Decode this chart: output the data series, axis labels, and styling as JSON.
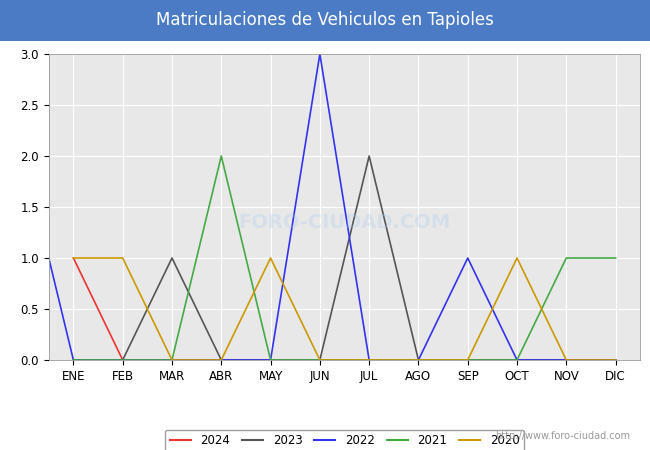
{
  "title": "Matriculaciones de Vehiculos en Tapioles",
  "title_bg_color": "#4a7bc4",
  "title_text_color": "#FFFFFF",
  "plot_bg_color": "#E8E8E8",
  "months": [
    "ENE",
    "FEB",
    "MAR",
    "ABR",
    "MAY",
    "JUN",
    "JUL",
    "AGO",
    "SEP",
    "OCT",
    "NOV",
    "DIC"
  ],
  "ylim": [
    0.0,
    3.0
  ],
  "yticks": [
    0.0,
    0.5,
    1.0,
    1.5,
    2.0,
    2.5,
    3.0
  ],
  "watermark": "http://www.foro-ciudad.com",
  "series": {
    "2024": {
      "color": "#EE3333",
      "data": [
        1,
        0,
        0,
        0,
        0,
        0,
        0,
        0,
        0,
        0,
        0,
        0
      ]
    },
    "2023": {
      "color": "#555555",
      "data": [
        0,
        0,
        1,
        0,
        0,
        0,
        2,
        0,
        0,
        0,
        0,
        0
      ]
    },
    "2022": {
      "color": "#3333EE",
      "data": [
        0,
        0,
        0,
        0,
        0,
        3,
        0,
        0,
        1,
        0,
        0,
        0
      ]
    },
    "2021": {
      "color": "#44AA44",
      "data": [
        0,
        0,
        0,
        2,
        0,
        0,
        0,
        0,
        0,
        0,
        1,
        1
      ]
    },
    "2020": {
      "color": "#CC9900",
      "data": [
        1,
        1,
        0,
        0,
        1,
        0,
        0,
        0,
        0,
        1,
        0,
        0
      ]
    }
  },
  "series_order": [
    "2024",
    "2023",
    "2022",
    "2021",
    "2020"
  ],
  "start_values": {
    "2022": 1
  }
}
